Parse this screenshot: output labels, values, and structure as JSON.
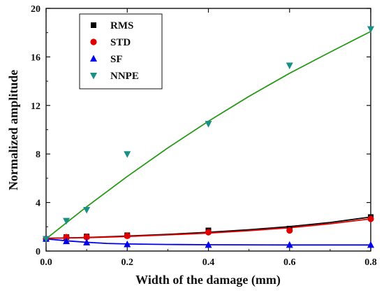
{
  "chart_data": {
    "type": "scatter",
    "title": "",
    "xlabel": "Width of the damage (mm)",
    "ylabel": "Normalized amplitude",
    "xlim": [
      0.0,
      0.8
    ],
    "ylim": [
      0,
      20
    ],
    "xticks": [
      "0.0",
      "0.2",
      "0.4",
      "0.6",
      "0.8"
    ],
    "yticks": [
      "0",
      "4",
      "8",
      "12",
      "16",
      "20"
    ],
    "grid": false,
    "legend_position": "top-left",
    "series": [
      {
        "name": "RMS",
        "color": "#000000",
        "marker": "square",
        "x": [
          0.0,
          0.05,
          0.1,
          0.2,
          0.4,
          0.6,
          0.8
        ],
        "y": [
          1.0,
          1.15,
          1.2,
          1.3,
          1.7,
          1.85,
          2.8
        ],
        "fit": [
          [
            0.0,
            1.05
          ],
          [
            0.1,
            1.12
          ],
          [
            0.2,
            1.24
          ],
          [
            0.3,
            1.38
          ],
          [
            0.4,
            1.55
          ],
          [
            0.5,
            1.76
          ],
          [
            0.6,
            2.02
          ],
          [
            0.7,
            2.36
          ],
          [
            0.8,
            2.8
          ]
        ]
      },
      {
        "name": "STD",
        "color": "#e00000",
        "marker": "circle",
        "x": [
          0.0,
          0.05,
          0.1,
          0.2,
          0.4,
          0.6,
          0.8
        ],
        "y": [
          1.0,
          1.15,
          1.15,
          1.25,
          1.55,
          1.7,
          2.65
        ],
        "fit": [
          [
            0.0,
            1.05
          ],
          [
            0.1,
            1.1
          ],
          [
            0.2,
            1.2
          ],
          [
            0.3,
            1.33
          ],
          [
            0.4,
            1.48
          ],
          [
            0.5,
            1.68
          ],
          [
            0.6,
            1.92
          ],
          [
            0.7,
            2.25
          ],
          [
            0.8,
            2.65
          ]
        ]
      },
      {
        "name": "SF",
        "color": "#0000ee",
        "marker": "triangle-up",
        "x": [
          0.0,
          0.05,
          0.1,
          0.2,
          0.4,
          0.6,
          0.8
        ],
        "y": [
          1.0,
          0.8,
          0.7,
          0.55,
          0.5,
          0.5,
          0.5
        ],
        "fit": [
          [
            0.0,
            1.0
          ],
          [
            0.05,
            0.85
          ],
          [
            0.1,
            0.72
          ],
          [
            0.15,
            0.63
          ],
          [
            0.2,
            0.58
          ],
          [
            0.3,
            0.54
          ],
          [
            0.4,
            0.52
          ],
          [
            0.6,
            0.5
          ],
          [
            0.8,
            0.5
          ]
        ]
      },
      {
        "name": "NNPE",
        "color": "#1a8f85",
        "line_color": "#2a9a1a",
        "marker": "triangle-down",
        "x": [
          0.0,
          0.05,
          0.1,
          0.2,
          0.4,
          0.6,
          0.8
        ],
        "y": [
          1.0,
          2.5,
          3.4,
          8.0,
          10.5,
          15.3,
          18.3
        ],
        "fit": [
          [
            0.0,
            1.0
          ],
          [
            0.1,
            3.65
          ],
          [
            0.2,
            6.15
          ],
          [
            0.3,
            8.5
          ],
          [
            0.4,
            10.7
          ],
          [
            0.5,
            12.75
          ],
          [
            0.6,
            14.65
          ],
          [
            0.7,
            16.4
          ],
          [
            0.8,
            18.1
          ]
        ]
      }
    ]
  }
}
